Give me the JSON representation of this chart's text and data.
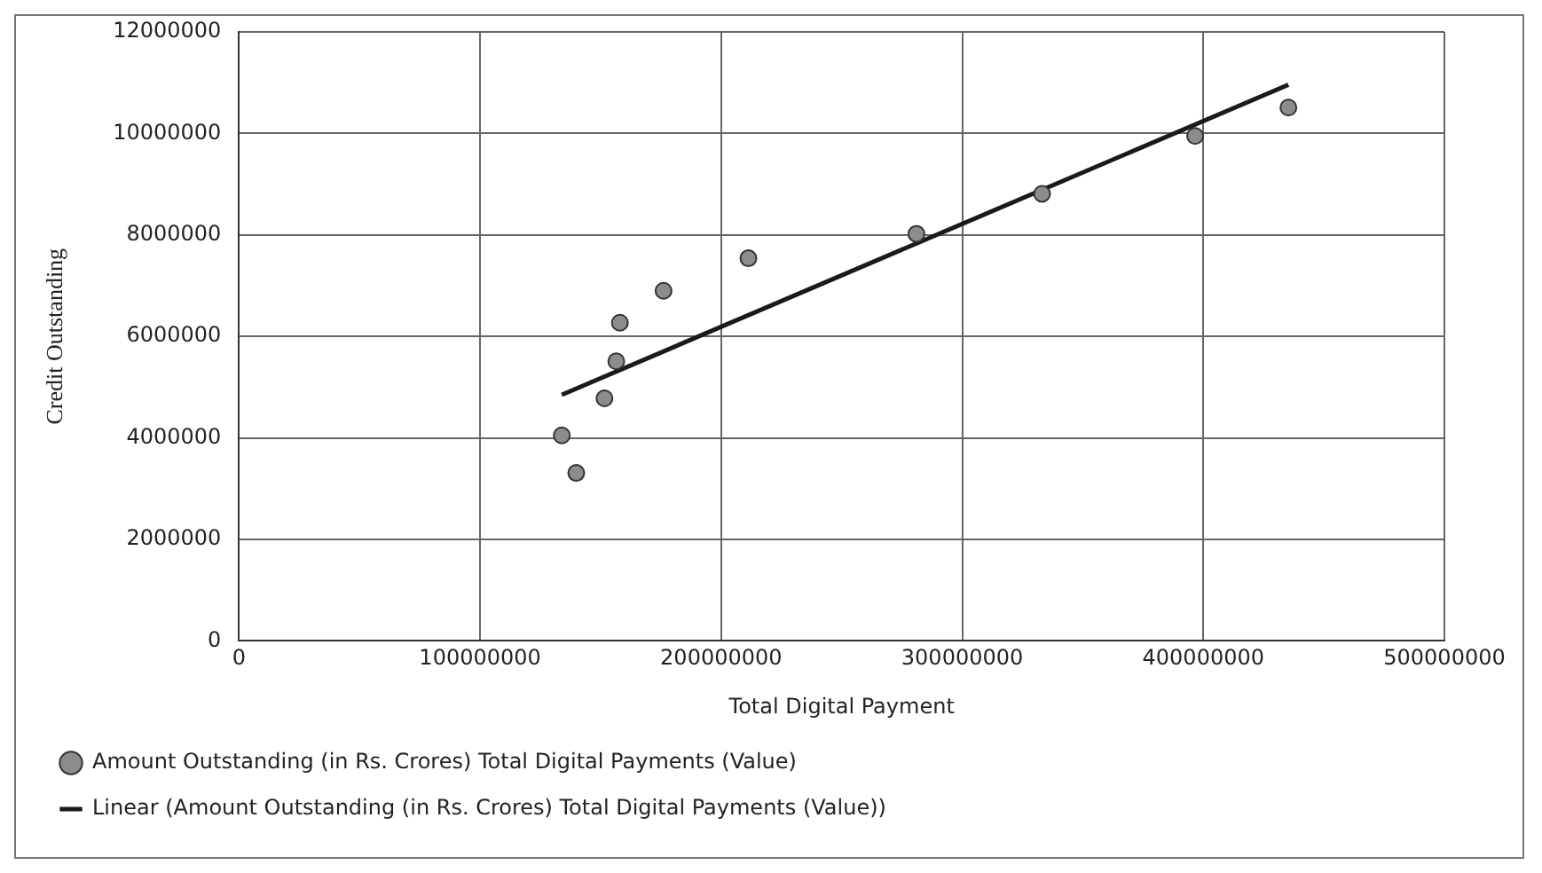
{
  "chart_data": {
    "type": "scatter",
    "xlabel": "Total Digital Payment",
    "ylabel": "Credit Outstanding",
    "x": [
      133900000,
      139900000,
      151600000,
      156500000,
      158000000,
      176100000,
      211300000,
      281000000,
      333100000,
      396600000,
      435300000
    ],
    "series": [
      {
        "name": "Amount Outstanding (in Rs. Crores) Total Digital Payments (Value)",
        "color": "#8c8c8c",
        "marker": "circle",
        "values": [
          4050000,
          3310000,
          4780000,
          5510000,
          6270000,
          6900000,
          7540000,
          8020000,
          8810000,
          9950000,
          10510000
        ]
      },
      {
        "name": "Linear (Amount Outstanding (in Rs. Crores) Total Digital Payments (Value))",
        "type": "line",
        "marker": "none",
        "color": "#1a1a1a",
        "x": [
          133900000,
          435300000
        ],
        "values": [
          4850000,
          10960000
        ]
      }
    ],
    "xlim": [
      0,
      500000000
    ],
    "xticks": [
      0,
      100000000,
      200000000,
      300000000,
      400000000,
      500000000
    ],
    "ylim": [
      0,
      12000000
    ],
    "yticks": [
      0,
      2000000,
      4000000,
      6000000,
      8000000,
      10000000,
      12000000
    ],
    "grid": true,
    "legend": "bottom"
  }
}
